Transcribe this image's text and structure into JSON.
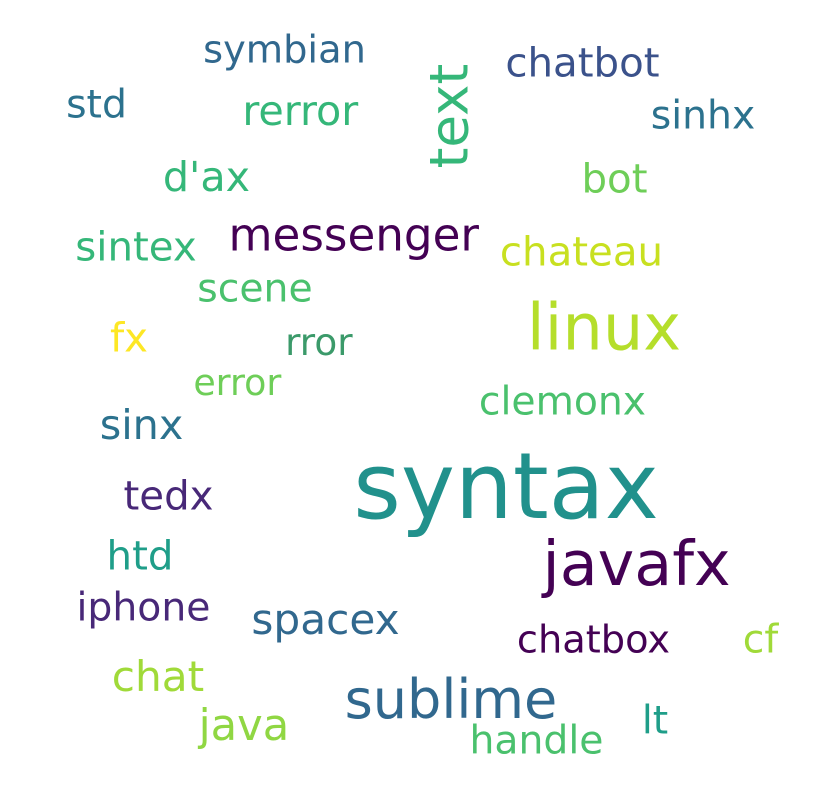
{
  "words": [
    {
      "text": "syntax",
      "color": "#21918c"
    },
    {
      "text": "linux",
      "color": "#b5de2b"
    },
    {
      "text": "javafx",
      "color": "#440154"
    },
    {
      "text": "sublime",
      "color": "#31688e"
    },
    {
      "text": "text",
      "color": "#35b779"
    },
    {
      "text": "messenger",
      "color": "#440154"
    },
    {
      "text": "chatbot",
      "color": "#3b528b"
    },
    {
      "text": "chatbox",
      "color": "#440154"
    },
    {
      "text": "symbian",
      "color": "#31688e"
    },
    {
      "text": "chateau",
      "color": "#c8e020"
    },
    {
      "text": "clemonx",
      "color": "#4ac16d"
    },
    {
      "text": "spacex",
      "color": "#31688e"
    },
    {
      "text": "iphone",
      "color": "#482878"
    },
    {
      "text": "rerror",
      "color": "#35b779"
    },
    {
      "text": "sintex",
      "color": "#35b779"
    },
    {
      "text": "sinhx",
      "color": "#2c728e"
    },
    {
      "text": "scene",
      "color": "#4ac16d"
    },
    {
      "text": "handle",
      "color": "#4ac16d"
    },
    {
      "text": "error",
      "color": "#6ece58"
    },
    {
      "text": "rror",
      "color": "#3b9a6a"
    },
    {
      "text": "chat",
      "color": "#a0da39"
    },
    {
      "text": "java",
      "color": "#90d743"
    },
    {
      "text": "d'ax",
      "color": "#35b779"
    },
    {
      "text": "bot",
      "color": "#6ece58"
    },
    {
      "text": "tedx",
      "color": "#482878"
    },
    {
      "text": "sinx",
      "color": "#2c728e"
    },
    {
      "text": "htd",
      "color": "#1f9e89"
    },
    {
      "text": "std",
      "color": "#2c728e"
    },
    {
      "text": "lt",
      "color": "#1f9e89"
    },
    {
      "text": "cf",
      "color": "#a0da39"
    },
    {
      "text": "fx",
      "color": "#fde725"
    }
  ]
}
